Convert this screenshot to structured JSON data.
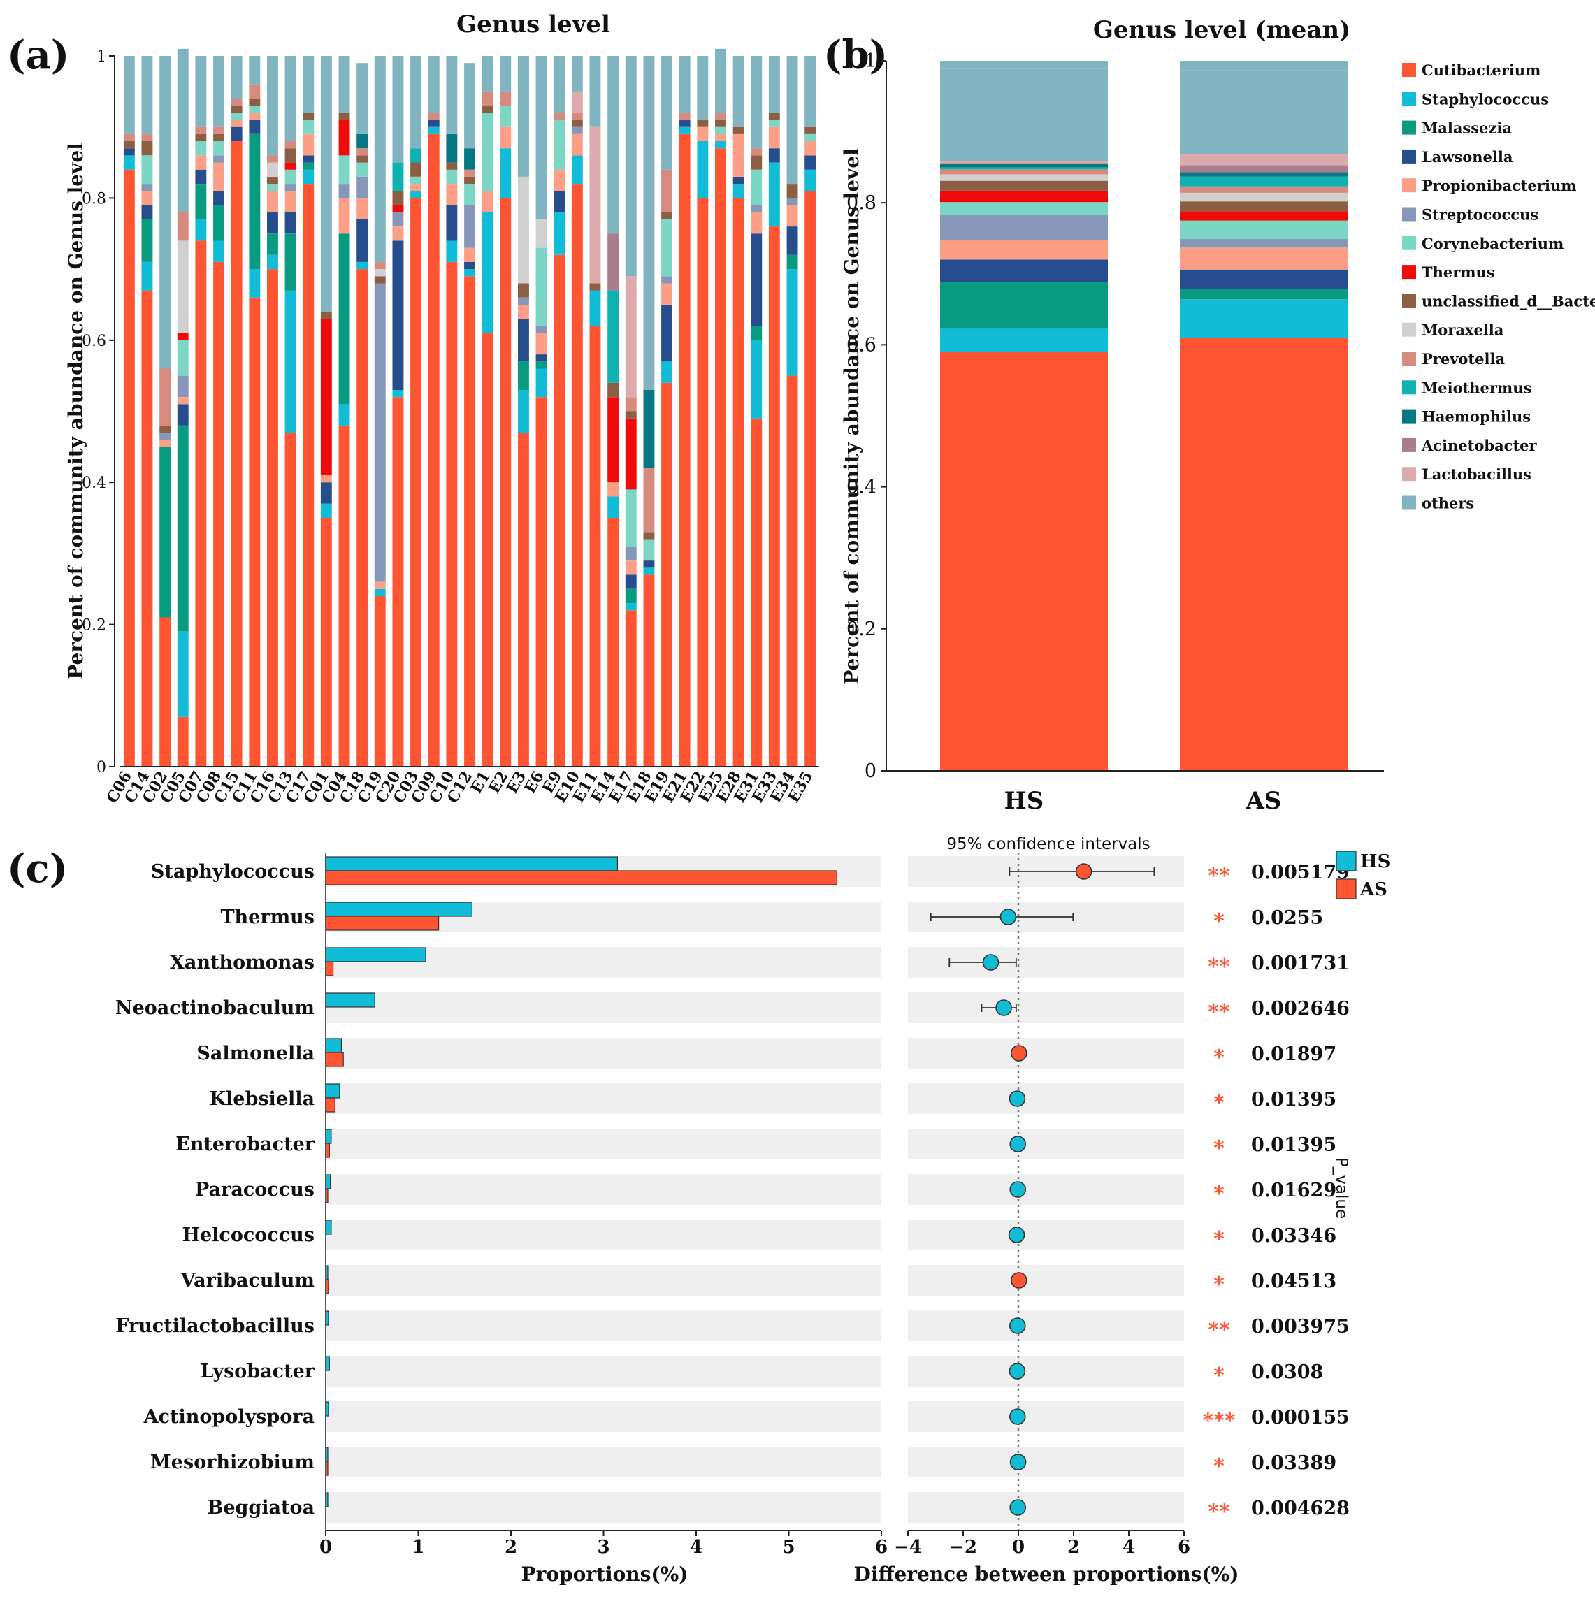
{
  "colors": {
    "Cutibacterium": "#ff5533",
    "Staphylococcus": "#11bcd6",
    "Malassezia": "#089b80",
    "Lawsonella": "#264d8c",
    "Propionibacterium": "#fc9f86",
    "Streptococcus": "#8797ba",
    "Corynebacterium": "#7cd6c4",
    "Thermus": "#f00a0a",
    "unclassified_d__Bacteria": "#8c5e43",
    "Moraxella": "#d0d0d0",
    "Prevotella": "#d78a7e",
    "Meiothermus": "#0fb1b1",
    "Haemophilus": "#057884",
    "Acinetobacter": "#a87d8c",
    "Lactobacillus": "#deabac",
    "others": "#80b4c1",
    "HS": "#11bcd6",
    "AS": "#ff5533",
    "star": "#ff5533"
  },
  "panel_a": {
    "label": "(a)",
    "chart_data": {
      "type": "bar",
      "stacked": true,
      "title": "Genus level",
      "ylabel": "Percent of community abundance on Genus level",
      "ylim": [
        0,
        1
      ],
      "yticks": [
        "0",
        "0.2",
        "0.4",
        "0.6",
        "0.8",
        "1"
      ],
      "categories": [
        "C06",
        "C14",
        "C02",
        "C05",
        "C07",
        "C08",
        "C15",
        "C11",
        "C16",
        "C13",
        "C17",
        "C01",
        "C04",
        "C18",
        "C19",
        "C20",
        "C03",
        "C09",
        "C10",
        "C12",
        "E1",
        "E2",
        "E3",
        "E6",
        "E9",
        "E10",
        "E11",
        "E14",
        "E17",
        "E18",
        "E19",
        "E21",
        "E22",
        "E25",
        "E28",
        "E31",
        "E33",
        "E34",
        "E35"
      ],
      "series": [
        {
          "name": "Cutibacterium",
          "values": [
            0.84,
            0.67,
            0.21,
            0.07,
            0.74,
            0.71,
            0.88,
            0.66,
            0.7,
            0.47,
            0.82,
            0.35,
            0.48,
            0.7,
            0.24,
            0.52,
            0.8,
            0.89,
            0.71,
            0.69,
            0.61,
            0.8,
            0.47,
            0.52,
            0.72,
            0.82,
            0.62,
            0.35,
            0.22,
            0.27,
            0.54,
            0.89,
            0.8,
            0.87,
            0.8,
            0.49,
            0.76,
            0.55,
            0.81
          ]
        },
        {
          "name": "Staphylococcus",
          "values": [
            0.02,
            0.04,
            0.0,
            0.12,
            0.03,
            0.03,
            0.0,
            0.04,
            0.02,
            0.2,
            0.02,
            0.02,
            0.03,
            0.01,
            0.01,
            0.01,
            0.01,
            0.01,
            0.03,
            0.01,
            0.17,
            0.07,
            0.06,
            0.04,
            0.06,
            0.04,
            0.05,
            0.03,
            0.01,
            0.01,
            0.03,
            0.01,
            0.08,
            0.01,
            0.02,
            0.11,
            0.09,
            0.15,
            0.03
          ]
        },
        {
          "name": "Malassezia",
          "values": [
            0.0,
            0.06,
            0.24,
            0.29,
            0.05,
            0.05,
            0.0,
            0.19,
            0.03,
            0.08,
            0.01,
            0.0,
            0.24,
            0.0,
            0.0,
            0.0,
            0.0,
            0.0,
            0.0,
            0.0,
            0.0,
            0.0,
            0.04,
            0.01,
            0.0,
            0.0,
            0.0,
            0.0,
            0.02,
            0.0,
            0.0,
            0.0,
            0.0,
            0.0,
            0.0,
            0.02,
            0.0,
            0.02,
            0.0
          ]
        },
        {
          "name": "Lawsonella",
          "values": [
            0.01,
            0.02,
            0.0,
            0.03,
            0.02,
            0.02,
            0.02,
            0.02,
            0.03,
            0.03,
            0.01,
            0.03,
            0.0,
            0.06,
            0.0,
            0.21,
            0.0,
            0.01,
            0.05,
            0.01,
            0.0,
            0.0,
            0.06,
            0.01,
            0.03,
            0.0,
            0.0,
            0.0,
            0.02,
            0.01,
            0.08,
            0.01,
            0.0,
            0.0,
            0.01,
            0.13,
            0.02,
            0.04,
            0.02
          ]
        },
        {
          "name": "Propionibacterium",
          "values": [
            0.0,
            0.02,
            0.01,
            0.01,
            0.02,
            0.04,
            0.01,
            0.01,
            0.03,
            0.03,
            0.03,
            0.01,
            0.05,
            0.03,
            0.01,
            0.02,
            0.01,
            0.0,
            0.03,
            0.02,
            0.03,
            0.03,
            0.02,
            0.03,
            0.03,
            0.03,
            0.0,
            0.02,
            0.02,
            0.0,
            0.03,
            0.0,
            0.02,
            0.01,
            0.06,
            0.03,
            0.03,
            0.03,
            0.02
          ]
        },
        {
          "name": "Streptococcus",
          "values": [
            0.0,
            0.01,
            0.01,
            0.03,
            0.0,
            0.01,
            0.0,
            0.0,
            0.0,
            0.01,
            0.0,
            0.0,
            0.02,
            0.03,
            0.42,
            0.02,
            0.0,
            0.0,
            0.0,
            0.06,
            0.0,
            0.0,
            0.01,
            0.01,
            0.0,
            0.01,
            0.0,
            0.0,
            0.02,
            0.0,
            0.01,
            0.0,
            0.0,
            0.0,
            0.0,
            0.01,
            0.0,
            0.01,
            0.0
          ]
        },
        {
          "name": "Corynebacterium",
          "values": [
            0.0,
            0.04,
            0.0,
            0.05,
            0.02,
            0.02,
            0.01,
            0.01,
            0.01,
            0.02,
            0.02,
            0.0,
            0.04,
            0.02,
            0.0,
            0.0,
            0.01,
            0.0,
            0.02,
            0.03,
            0.11,
            0.03,
            0.0,
            0.11,
            0.07,
            0.0,
            0.0,
            0.0,
            0.08,
            0.03,
            0.08,
            0.0,
            0.0,
            0.01,
            0.0,
            0.05,
            0.01,
            0.0,
            0.01
          ]
        },
        {
          "name": "Thermus",
          "values": [
            0.0,
            0.0,
            0.0,
            0.01,
            0.0,
            0.0,
            0.0,
            0.0,
            0.0,
            0.01,
            0.0,
            0.22,
            0.05,
            0.0,
            0.0,
            0.01,
            0.0,
            0.0,
            0.0,
            0.0,
            0.0,
            0.0,
            0.0,
            0.0,
            0.0,
            0.0,
            0.0,
            0.12,
            0.1,
            0.0,
            0.0,
            0.0,
            0.0,
            0.0,
            0.0,
            0.0,
            0.0,
            0.0,
            0.0
          ]
        },
        {
          "name": "unclassified_d__Bacteria",
          "values": [
            0.01,
            0.02,
            0.01,
            0.0,
            0.01,
            0.01,
            0.01,
            0.01,
            0.01,
            0.02,
            0.01,
            0.01,
            0.01,
            0.01,
            0.01,
            0.02,
            0.02,
            0.0,
            0.01,
            0.01,
            0.01,
            0.0,
            0.02,
            0.0,
            0.0,
            0.01,
            0.01,
            0.02,
            0.01,
            0.01,
            0.01,
            0.0,
            0.01,
            0.01,
            0.01,
            0.02,
            0.01,
            0.02,
            0.01
          ]
        },
        {
          "name": "Moraxella",
          "values": [
            0.0,
            0.0,
            0.0,
            0.13,
            0.0,
            0.0,
            0.0,
            0.0,
            0.02,
            0.0,
            0.0,
            0.0,
            0.0,
            0.0,
            0.01,
            0.0,
            0.0,
            0.0,
            0.0,
            0.0,
            0.0,
            0.0,
            0.15,
            0.04,
            0.0,
            0.0,
            0.0,
            0.0,
            0.0,
            0.0,
            0.0,
            0.0,
            0.0,
            0.0,
            0.0,
            0.0,
            0.0,
            0.0,
            0.0
          ]
        },
        {
          "name": "Prevotella",
          "values": [
            0.01,
            0.01,
            0.08,
            0.04,
            0.01,
            0.01,
            0.01,
            0.02,
            0.01,
            0.01,
            0.0,
            0.0,
            0.0,
            0.01,
            0.01,
            0.0,
            0.0,
            0.01,
            0.0,
            0.01,
            0.02,
            0.02,
            0.0,
            0.0,
            0.01,
            0.01,
            0.0,
            0.0,
            0.02,
            0.09,
            0.06,
            0.01,
            0.0,
            0.01,
            0.0,
            0.01,
            0.0,
            0.0,
            0.0
          ]
        },
        {
          "name": "Meiothermus",
          "values": [
            0.0,
            0.0,
            0.0,
            0.0,
            0.0,
            0.0,
            0.0,
            0.0,
            0.0,
            0.0,
            0.0,
            0.0,
            0.0,
            0.0,
            0.0,
            0.04,
            0.02,
            0.0,
            0.0,
            0.0,
            0.0,
            0.0,
            0.0,
            0.0,
            0.0,
            0.0,
            0.0,
            0.13,
            0.0,
            0.0,
            0.0,
            0.0,
            0.0,
            0.0,
            0.0,
            0.0,
            0.0,
            0.0,
            0.0
          ]
        },
        {
          "name": "Haemophilus",
          "values": [
            0.0,
            0.0,
            0.0,
            0.0,
            0.0,
            0.0,
            0.0,
            0.0,
            0.0,
            0.0,
            0.0,
            0.0,
            0.0,
            0.02,
            0.0,
            0.0,
            0.0,
            0.0,
            0.04,
            0.03,
            0.0,
            0.0,
            0.0,
            0.0,
            0.0,
            0.0,
            0.0,
            0.0,
            0.0,
            0.11,
            0.0,
            0.0,
            0.0,
            0.0,
            0.0,
            0.0,
            0.0,
            0.0,
            0.0
          ]
        },
        {
          "name": "Acinetobacter",
          "values": [
            0.0,
            0.0,
            0.0,
            0.0,
            0.0,
            0.0,
            0.0,
            0.0,
            0.0,
            0.0,
            0.0,
            0.0,
            0.0,
            0.0,
            0.0,
            0.0,
            0.0,
            0.0,
            0.0,
            0.0,
            0.0,
            0.0,
            0.0,
            0.0,
            0.0,
            0.0,
            0.0,
            0.08,
            0.0,
            0.0,
            0.0,
            0.0,
            0.0,
            0.0,
            0.0,
            0.0,
            0.0,
            0.0,
            0.0
          ]
        },
        {
          "name": "Lactobacillus",
          "values": [
            0.0,
            0.0,
            0.0,
            0.0,
            0.0,
            0.0,
            0.0,
            0.0,
            0.0,
            0.0,
            0.0,
            0.0,
            0.0,
            0.0,
            0.0,
            0.0,
            0.0,
            0.0,
            0.0,
            0.0,
            0.0,
            0.0,
            0.0,
            0.0,
            0.0,
            0.03,
            0.22,
            0.0,
            0.17,
            0.0,
            0.0,
            0.0,
            0.0,
            0.0,
            0.0,
            0.0,
            0.0,
            0.0,
            0.0
          ]
        },
        {
          "name": "others",
          "values": [
            0.11,
            0.11,
            0.44,
            0.23,
            0.1,
            0.1,
            0.06,
            0.04,
            0.14,
            0.12,
            0.08,
            0.36,
            0.08,
            0.1,
            0.29,
            0.15,
            0.13,
            0.08,
            0.11,
            0.12,
            0.05,
            0.05,
            0.17,
            0.23,
            0.08,
            0.05,
            0.1,
            0.25,
            0.31,
            0.47,
            0.16,
            0.08,
            0.09,
            0.09,
            0.1,
            0.13,
            0.08,
            0.18,
            0.1
          ]
        }
      ]
    }
  },
  "panel_b": {
    "label": "(b)",
    "chart_data": {
      "type": "bar",
      "stacked": true,
      "title": "Genus level (mean)",
      "ylabel": "Percent of community abundance on Genus level",
      "ylim": [
        0,
        1
      ],
      "yticks": [
        "0",
        "0.2",
        "0.4",
        "0.6",
        "0.8",
        "1"
      ],
      "categories": [
        "HS",
        "AS"
      ],
      "series": [
        {
          "name": "Cutibacterium",
          "values": [
            0.59,
            0.61
          ]
        },
        {
          "name": "Staphylococcus",
          "values": [
            0.033,
            0.054
          ]
        },
        {
          "name": "Malassezia",
          "values": [
            0.066,
            0.015
          ]
        },
        {
          "name": "Lawsonella",
          "values": [
            0.031,
            0.027
          ]
        },
        {
          "name": "Propionibacterium",
          "values": [
            0.027,
            0.031
          ]
        },
        {
          "name": "Streptococcus",
          "values": [
            0.036,
            0.012
          ]
        },
        {
          "name": "Corynebacterium",
          "values": [
            0.018,
            0.026
          ]
        },
        {
          "name": "Thermus",
          "values": [
            0.016,
            0.013
          ]
        },
        {
          "name": "unclassified_d__Bacteria",
          "values": [
            0.014,
            0.014
          ]
        },
        {
          "name": "Moraxella",
          "values": [
            0.009,
            0.012
          ]
        },
        {
          "name": "Prevotella",
          "values": [
            0.007,
            0.009
          ]
        },
        {
          "name": "Meiothermus",
          "values": [
            0.003,
            0.014
          ]
        },
        {
          "name": "Haemophilus",
          "values": [
            0.005,
            0.006
          ]
        },
        {
          "name": "Acinetobacter",
          "values": [
            0.001,
            0.01
          ]
        },
        {
          "name": "Lactobacillus",
          "values": [
            0.003,
            0.016
          ]
        },
        {
          "name": "others",
          "values": [
            0.13,
            0.118
          ]
        }
      ]
    },
    "legend": [
      "Cutibacterium",
      "Staphylococcus",
      "Malassezia",
      "Lawsonella",
      "Propionibacterium",
      "Streptococcus",
      "Corynebacterium",
      "Thermus",
      "unclassified_d__Bacteria",
      "Moraxella",
      "Prevotella",
      "Meiothermus",
      "Haemophilus",
      "Acinetobacter",
      "Lactobacillus",
      "others"
    ]
  },
  "panel_c": {
    "label": "(c)",
    "chart_data": {
      "type": "bar",
      "orientation": "horizontal",
      "xlabel": "Proportions(%)",
      "xlim": [
        0,
        6
      ],
      "xticks": [
        "0",
        "1",
        "2",
        "3",
        "4",
        "5",
        "6"
      ],
      "categories": [
        "Staphylococcus",
        "Thermus",
        "Xanthomonas",
        "Neoactinobaculum",
        "Salmonella",
        "Klebsiella",
        "Enterobacter",
        "Paracoccus",
        "Helcococcus",
        "Varibaculum",
        "Fructilactobacillus",
        "Lysobacter",
        "Actinopolyspora",
        "Mesorhizobium",
        "Beggiatoa"
      ],
      "series": [
        {
          "name": "HS",
          "values": [
            3.15,
            1.58,
            1.08,
            0.53,
            0.17,
            0.15,
            0.06,
            0.05,
            0.06,
            0.01,
            0.03,
            0.04,
            0.03,
            0.01,
            0.02
          ]
        },
        {
          "name": "AS",
          "values": [
            5.52,
            1.22,
            0.08,
            0.0,
            0.19,
            0.1,
            0.04,
            0.02,
            0.0,
            0.03,
            0.0,
            0.0,
            0.0,
            0.02,
            0.0
          ]
        }
      ],
      "legend": [
        "HS",
        "AS"
      ]
    },
    "ci_data": {
      "type": "scatter",
      "title": "95% confidence intervals",
      "xlabel": "Difference between proportions(%)",
      "xlim": [
        -4,
        6
      ],
      "xticks": [
        "−4",
        "−2",
        "0",
        "2",
        "4",
        "6"
      ],
      "diff": [
        2.37,
        -0.37,
        -1.0,
        -0.53,
        0.02,
        -0.04,
        -0.02,
        -0.02,
        -0.06,
        0.02,
        -0.03,
        -0.04,
        -0.03,
        -0.01,
        -0.02
      ],
      "ci_low": [
        -0.32,
        -3.17,
        -2.5,
        -1.33,
        null,
        null,
        null,
        null,
        null,
        null,
        null,
        null,
        null,
        null,
        null
      ],
      "ci_high": [
        4.92,
        1.98,
        -0.08,
        -0.08,
        null,
        null,
        null,
        null,
        null,
        null,
        null,
        null,
        null,
        null,
        null
      ],
      "winner": [
        "AS",
        "HS",
        "HS",
        "HS",
        "AS",
        "HS",
        "HS",
        "HS",
        "HS",
        "AS",
        "HS",
        "HS",
        "HS",
        "HS",
        "HS"
      ]
    },
    "significance": [
      "**",
      "*",
      "**",
      "**",
      "*",
      "*",
      "*",
      "*",
      "*",
      "*",
      "**",
      "*",
      "***",
      "*",
      "**"
    ],
    "p_values": [
      "0.005179",
      "0.0255",
      "0.001731",
      "0.002646",
      "0.01897",
      "0.01395",
      "0.01395",
      "0.01629",
      "0.03346",
      "0.04513",
      "0.003975",
      "0.0308",
      "0.000155",
      "0.03389",
      "0.004628"
    ],
    "p_value_label": "P_value"
  }
}
